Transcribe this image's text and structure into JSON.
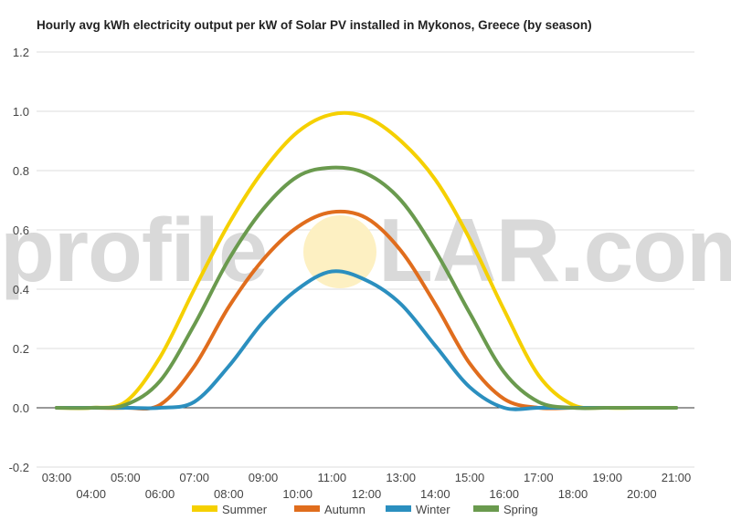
{
  "chart_data": {
    "type": "line",
    "title": "Hourly avg kWh electricity output per kW of Solar PV installed in Mykonos, Greece (by season)",
    "xlabel": "",
    "ylabel": "",
    "ylim": [
      -0.2,
      1.2
    ],
    "yticks": [
      "-0.2",
      "0.0",
      "0.2",
      "0.4",
      "0.6",
      "0.8",
      "1.0",
      "1.2"
    ],
    "x": [
      "03:00",
      "04:00",
      "05:00",
      "06:00",
      "07:00",
      "08:00",
      "09:00",
      "10:00",
      "11:00",
      "12:00",
      "13:00",
      "14:00",
      "15:00",
      "16:00",
      "17:00",
      "18:00",
      "19:00",
      "20:00",
      "21:00"
    ],
    "grid": true,
    "legend": "bottom",
    "series": [
      {
        "name": "Summer",
        "color": "#f5d000",
        "values": [
          0,
          0,
          0.02,
          0.17,
          0.4,
          0.62,
          0.8,
          0.93,
          0.99,
          0.98,
          0.9,
          0.77,
          0.57,
          0.33,
          0.11,
          0.01,
          0,
          0,
          0
        ]
      },
      {
        "name": "Autumn",
        "color": "#e06d1d",
        "values": [
          0,
          0,
          0,
          0.01,
          0.14,
          0.34,
          0.5,
          0.61,
          0.66,
          0.64,
          0.53,
          0.35,
          0.15,
          0.03,
          0,
          0,
          0,
          0,
          0
        ]
      },
      {
        "name": "Winter",
        "color": "#2b8fbf",
        "values": [
          0,
          0,
          0,
          0,
          0.02,
          0.14,
          0.29,
          0.4,
          0.46,
          0.43,
          0.35,
          0.21,
          0.07,
          0,
          0,
          0,
          0,
          0,
          0
        ]
      },
      {
        "name": "Spring",
        "color": "#6a9a4e",
        "values": [
          0,
          0,
          0.01,
          0.09,
          0.28,
          0.5,
          0.67,
          0.78,
          0.81,
          0.79,
          0.7,
          0.53,
          0.32,
          0.12,
          0.02,
          0,
          0,
          0,
          0
        ]
      }
    ]
  },
  "watermark": {
    "left": "profile",
    "right": "LAR.com",
    "sun_color": "#fdf0c2"
  }
}
